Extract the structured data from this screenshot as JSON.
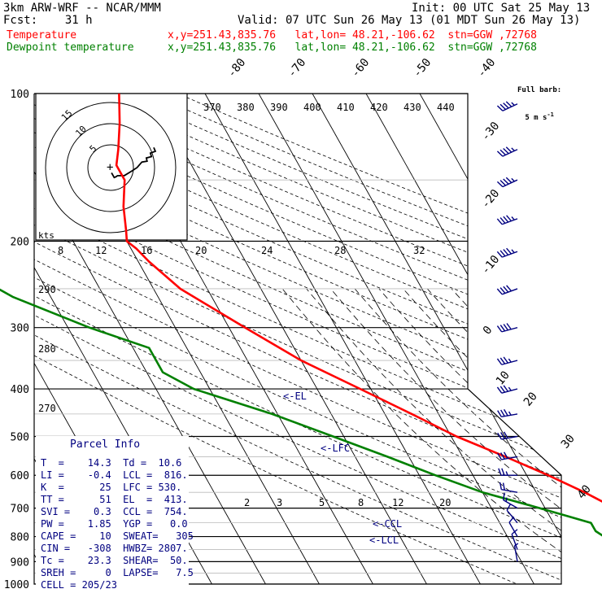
{
  "header": {
    "model": "3km ARW-WRF -- NCAR/MMM",
    "init": "Init: 00 UTC Sat 25 May 13",
    "fcst": "Fcst:    31 h",
    "valid": "Valid: 07 UTC Sun 26 May 13 (01 MDT Sun 26 May 13)",
    "temp_label": "Temperature",
    "dew_label": "Dewpoint temperature",
    "temp_loc": "x,y=251.43,835.76   lat,lon= 48.21,-106.62  stn=GGW ,72768",
    "dew_loc": "x,y=251.43,835.76   lat,lon= 48.21,-106.62  stn=GGW ,72768"
  },
  "colors": {
    "temperature": "#ff0000",
    "dewpoint": "#008000",
    "annotation": "#000080",
    "hodograph": "#000000",
    "grid": "#000000"
  },
  "barb_key": {
    "line1": "Full barb:",
    "line2": "5 m s",
    "sup": "-1"
  },
  "parcel_info": {
    "title": "Parcel Info",
    "rows": [
      "T  =    14.3  Td =  10.6",
      "LI =    -0.4  LCL =  816.",
      "K  =      25  LFC = 530.",
      "TT =      51  EL  =  413.",
      "SVI =    0.3  CCL =  754.",
      "PW =    1.85  YGP =   0.0",
      "CAPE =    10  SWEAT=   305",
      "CIN =   -308  HWBZ= 2807.",
      "Tc =    23.3  SHEAR=  50.",
      "SREH =     0  LAPSE=   7.5",
      "CELL = 205/23"
    ]
  },
  "level_labels": [
    "<-EL",
    "<-LFC",
    "<-CCL",
    "<-LCL"
  ],
  "hodograph": {
    "ring_labels": [
      "5",
      "10",
      "15"
    ],
    "speed_unit": "kts",
    "note": "hodograph trace drawn from observed wind profile"
  },
  "chart_data": {
    "type": "line",
    "diagram": "skew-T log-p",
    "pressure_levels_hPa": [
      100,
      200,
      300,
      400,
      500,
      600,
      700,
      800,
      900,
      1000
    ],
    "isotherm_labels_C": [
      "-80",
      "-70",
      "-60",
      "-50",
      "-40",
      "-30",
      "-20",
      "-10",
      "0",
      "10",
      "20",
      "30",
      "40"
    ],
    "theta_labels_K": [
      "370",
      "380",
      "390",
      "400",
      "410",
      "420",
      "430",
      "440"
    ],
    "upper_scale_labels": [
      "8",
      "12",
      "16",
      "20",
      "24",
      "28",
      "32"
    ],
    "dry_adiabat_labels": [
      "290",
      "280",
      "270"
    ],
    "mixing_ratio_labels": [
      "2",
      "3",
      "5",
      "8",
      "12",
      "20"
    ],
    "series": [
      {
        "name": "Temperature",
        "color": "#ff0000",
        "points_p_T": [
          [
            100,
            -46
          ],
          [
            115,
            -49
          ],
          [
            130,
            -52
          ],
          [
            140,
            -54
          ],
          [
            150,
            -54
          ],
          [
            170,
            -57
          ],
          [
            190,
            -59
          ],
          [
            200,
            -60
          ],
          [
            207,
            -59
          ],
          [
            220,
            -58
          ],
          [
            250,
            -55
          ],
          [
            300,
            -47
          ],
          [
            350,
            -40
          ],
          [
            400,
            -32
          ],
          [
            450,
            -25
          ],
          [
            500,
            -19
          ],
          [
            550,
            -12
          ],
          [
            600,
            -6
          ],
          [
            650,
            -1
          ],
          [
            700,
            3
          ],
          [
            750,
            6
          ],
          [
            800,
            10
          ],
          [
            850,
            12
          ],
          [
            880,
            13
          ],
          [
            900,
            14.3
          ],
          [
            915,
            13.8
          ]
        ]
      },
      {
        "name": "Dewpoint temperature",
        "color": "#008000",
        "points_p_T": [
          [
            100,
            -99
          ],
          [
            150,
            -99
          ],
          [
            200,
            -96
          ],
          [
            230,
            -93
          ],
          [
            260,
            -87
          ],
          [
            300,
            -76
          ],
          [
            330,
            -67
          ],
          [
            370,
            -67
          ],
          [
            400,
            -63
          ],
          [
            450,
            -51
          ],
          [
            500,
            -42
          ],
          [
            550,
            -34
          ],
          [
            600,
            -27
          ],
          [
            650,
            -20
          ],
          [
            700,
            -11
          ],
          [
            750,
            -3
          ],
          [
            780,
            -3
          ],
          [
            800,
            -2
          ],
          [
            850,
            3
          ],
          [
            880,
            6
          ],
          [
            900,
            10.6
          ],
          [
            915,
            10.5
          ]
        ]
      }
    ],
    "wind_profile": {
      "pressure_hPa": [
        105,
        130,
        150,
        180,
        210,
        250,
        300,
        350,
        400,
        450,
        500,
        550,
        600,
        650,
        700,
        750,
        800,
        850,
        900
      ],
      "direction_deg": [
        245,
        245,
        245,
        250,
        250,
        250,
        255,
        255,
        255,
        260,
        260,
        260,
        270,
        280,
        300,
        320,
        330,
        340,
        350
      ],
      "speed_kt": [
        45,
        45,
        45,
        45,
        45,
        40,
        40,
        35,
        35,
        35,
        30,
        30,
        25,
        20,
        15,
        10,
        10,
        10,
        5
      ]
    }
  }
}
